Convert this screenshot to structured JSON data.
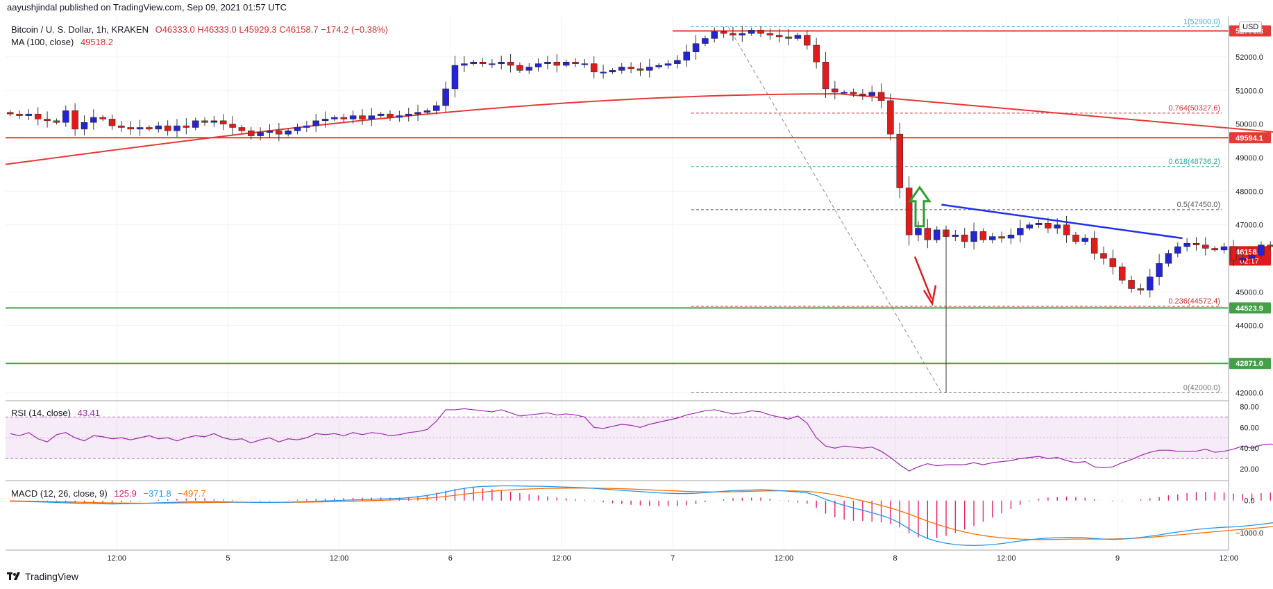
{
  "header": {
    "published": "aayushjindal published on TradingView.com, Sep 09, 2021 01:57 UTC",
    "symbol": "Bitcoin / U. S. Dollar, 1h, KRAKEN",
    "o": "O46333.0",
    "h": "H46333.0",
    "l": "L45929.3",
    "c": "C46158.7",
    "change": "−174.2 (−0.38%)",
    "ma_label": "MA (100, close)",
    "ma_value": "49518.2",
    "currency": "USD"
  },
  "indicators": {
    "rsi_label": "RSI (14, close)",
    "rsi_value": "43.41",
    "macd_label": "MACD (12, 26, close, 9)",
    "macd_hist": "125.9",
    "macd_line": "−371.8",
    "macd_signal": "−497.7"
  },
  "brand": "TradingView",
  "colors": {
    "up": "#2424d4",
    "down": "#e01b1b",
    "ma": "#e53935",
    "resistance": "#e53935",
    "support": "#43a047",
    "trendline": "#1f2ff0",
    "rsi": "#9c27b0",
    "macd": "#2196f3",
    "signal": "#ff6d00",
    "hist": "#e91e63",
    "arrow_up": "#2e9e2e",
    "arrow_down": "#e01b1b"
  },
  "chart_data": {
    "type": "candlestick",
    "ylim": [
      41800,
      53200
    ],
    "y_ticks": [
      "52000.0",
      "51000.0",
      "50000.0",
      "49000.0",
      "48000.0",
      "47000.0",
      "45000.0",
      "44000.0",
      "42000.0"
    ],
    "y_tick_values": [
      52000,
      51000,
      50000,
      49000,
      48000,
      47000,
      45000,
      44000,
      42000
    ],
    "x_ticks": [
      "12:00",
      "5",
      "12:00",
      "6",
      "12:00",
      "7",
      "12:00",
      "8",
      "12:00",
      "9",
      "12:00",
      "10",
      "12:00"
    ],
    "x_tick_hours": [
      12,
      24,
      36,
      48,
      60,
      72,
      84,
      96,
      108,
      120,
      132,
      144,
      156
    ],
    "candles": [
      [
        46333.0,
        46333.0,
        45929.3,
        46158.7
      ]
    ],
    "closes": [
      50300,
      50250,
      50300,
      50150,
      50100,
      50050,
      50400,
      49850,
      50050,
      50200,
      50150,
      49950,
      49900,
      49850,
      49900,
      49850,
      49950,
      49800,
      49950,
      49900,
      50100,
      50050,
      50100,
      50000,
      49900,
      49800,
      49650,
      49750,
      49800,
      49700,
      49800,
      49900,
      49950,
      50100,
      50150,
      50200,
      50150,
      50250,
      50150,
      50250,
      50300,
      50200,
      50250,
      50300,
      50350,
      50400,
      50550,
      51050,
      51750,
      51800,
      51850,
      51800,
      51800,
      51850,
      51750,
      51600,
      51700,
      51800,
      51850,
      51750,
      51850,
      51800,
      51800,
      51550,
      51550,
      51600,
      51700,
      51650,
      51600,
      51700,
      51750,
      51800,
      51900,
      52150,
      52400,
      52550,
      52750,
      52700,
      52650,
      52700,
      52800,
      52700,
      52650,
      52600,
      52550,
      52650,
      52350,
      51850,
      51050,
      50950,
      50950,
      50900,
      50850,
      50950,
      50700,
      49700,
      48100,
      46700,
      46900,
      46550,
      46850,
      46650,
      46700,
      46500,
      46800,
      46550,
      46650,
      46600,
      46700,
      46900,
      47000,
      47050,
      46900,
      47000,
      46700,
      46500,
      46600,
      46150,
      46000,
      45750,
      45350,
      45100,
      45050,
      45450,
      45850,
      46150,
      46350,
      46450,
      46400,
      46300,
      46250,
      46350,
      45950,
      46000,
      46100,
      46400,
      46350,
      46500,
      46450,
      46300,
      46150,
      46400,
      46450,
      46500,
      46350,
      46600,
      46400,
      46550,
      46333,
      46158.7
    ],
    "start_price": 50350,
    "ma_100": {
      "start": 48800,
      "peak": 50900,
      "end": 49518.2
    },
    "levels": [
      {
        "label": "52776.8",
        "price": 52776.8,
        "color": "resistance"
      },
      {
        "label": "49594.1",
        "price": 49594.1,
        "color": "resistance"
      },
      {
        "label": "46158.7",
        "price": 46158.7,
        "color": "down",
        "sub": "02:17"
      },
      {
        "label": "44523.9",
        "price": 44523.9,
        "color": "support"
      },
      {
        "label": "42871.0",
        "price": 42871.0,
        "color": "support"
      }
    ],
    "fib_levels": [
      {
        "label": "1(52900.0)",
        "price": 52900,
        "color": "#4aa7d8"
      },
      {
        "label": "0.764(50327.6)",
        "price": 50327.6,
        "color": "#d32f2f"
      },
      {
        "label": "0.618(48736.2)",
        "price": 48736.2,
        "color": "#26a69a"
      },
      {
        "label": "0.5(47450.0)",
        "price": 47450,
        "color": "#555555"
      },
      {
        "label": "0.236(44572.4)",
        "price": 44572.4,
        "color": "#d32f2f"
      },
      {
        "label": "0(42000.0)",
        "price": 42000,
        "color": "#777777"
      }
    ],
    "trendline": {
      "from": [
        101,
        47600
      ],
      "to": [
        125,
        46600
      ]
    },
    "rsi": {
      "ylim": [
        10,
        85
      ],
      "ticks": [
        "80.00",
        "60.00",
        "40.00",
        "20.00"
      ],
      "tick_values": [
        80,
        60,
        40,
        20
      ],
      "band": [
        30,
        70
      ],
      "values": [
        54,
        52,
        55,
        49,
        46,
        53,
        55,
        50,
        47,
        52,
        51,
        49,
        50,
        48,
        50,
        52,
        49,
        50,
        47,
        50,
        52,
        51,
        54,
        50,
        48,
        49,
        45,
        48,
        50,
        46,
        49,
        48,
        50,
        54,
        53,
        54,
        52,
        55,
        53,
        55,
        54,
        52,
        53,
        55,
        56,
        58,
        66,
        77,
        77,
        78,
        77,
        76,
        75,
        77,
        74,
        71,
        72,
        73,
        74,
        72,
        73,
        72,
        70,
        60,
        59,
        61,
        63,
        62,
        60,
        63,
        65,
        67,
        69,
        72,
        74,
        76,
        77,
        75,
        73,
        74,
        76,
        75,
        72,
        70,
        68,
        71,
        64,
        50,
        42,
        40,
        42,
        41,
        40,
        41,
        37,
        31,
        24,
        18,
        22,
        25,
        23,
        24,
        24,
        24,
        26,
        24,
        26,
        27,
        28,
        30,
        31,
        32,
        30,
        31,
        28,
        26,
        27,
        22,
        21,
        22,
        26,
        29,
        33,
        36,
        38,
        38,
        37,
        37,
        37,
        39,
        36,
        37,
        39,
        42,
        40,
        43,
        44,
        42,
        40,
        45,
        43,
        45,
        44,
        46,
        44,
        47,
        45,
        47,
        44.5,
        43.41
      ]
    },
    "macd": {
      "ylim": [
        -1500,
        600
      ],
      "ticks": [
        "0.0",
        "−1000.0"
      ],
      "tick_values": [
        0,
        -1000
      ],
      "macd": [
        -20,
        -25,
        -30,
        -40,
        -50,
        -60,
        -70,
        -80,
        -90,
        -95,
        -100,
        -105,
        -100,
        -95,
        -90,
        -80,
        -70,
        -60,
        -50,
        -40,
        -30,
        -30,
        -35,
        -40,
        -45,
        -50,
        -55,
        -60,
        -60,
        -55,
        -50,
        -40,
        -30,
        -20,
        -10,
        0,
        10,
        20,
        30,
        40,
        50,
        60,
        70,
        90,
        120,
        160,
        210,
        270,
        330,
        380,
        420,
        440,
        450,
        460,
        460,
        455,
        450,
        445,
        440,
        430,
        420,
        410,
        400,
        380,
        360,
        340,
        320,
        300,
        280,
        260,
        240,
        230,
        220,
        220,
        230,
        250,
        270,
        290,
        310,
        320,
        330,
        340,
        330,
        310,
        290,
        270,
        240,
        160,
        40,
        -60,
        -150,
        -230,
        -300,
        -380,
        -460,
        -560,
        -700,
        -880,
        -1050,
        -1180,
        -1270,
        -1330,
        -1370,
        -1390,
        -1400,
        -1390,
        -1370,
        -1340,
        -1300,
        -1260,
        -1220,
        -1190,
        -1170,
        -1160,
        -1150,
        -1150,
        -1160,
        -1180,
        -1200,
        -1210,
        -1200,
        -1180,
        -1150,
        -1110,
        -1070,
        -1020,
        -980,
        -940,
        -900,
        -870,
        -850,
        -830,
        -820,
        -800,
        -770,
        -740,
        -700,
        -670,
        -640,
        -610,
        -580,
        -550,
        -520,
        -490,
        -460,
        -430,
        -410,
        -390,
        -380,
        -371.8
      ],
      "signal": [
        -10,
        -14,
        -18,
        -22,
        -28,
        -34,
        -40,
        -48,
        -55,
        -62,
        -68,
        -74,
        -78,
        -80,
        -82,
        -82,
        -80,
        -78,
        -74,
        -70,
        -66,
        -62,
        -58,
        -56,
        -54,
        -53,
        -52,
        -53,
        -54,
        -54,
        -54,
        -52,
        -48,
        -44,
        -38,
        -32,
        -25,
        -18,
        -10,
        -2,
        8,
        18,
        28,
        40,
        56,
        76,
        100,
        130,
        165,
        200,
        235,
        265,
        290,
        315,
        335,
        350,
        362,
        372,
        380,
        385,
        388,
        390,
        390,
        388,
        384,
        378,
        370,
        360,
        348,
        336,
        322,
        310,
        298,
        286,
        278,
        272,
        270,
        272,
        276,
        282,
        290,
        298,
        304,
        306,
        304,
        298,
        286,
        262,
        226,
        178,
        120,
        56,
        -10,
        -80,
        -150,
        -230,
        -320,
        -420,
        -530,
        -640,
        -740,
        -830,
        -910,
        -980,
        -1040,
        -1090,
        -1130,
        -1160,
        -1180,
        -1200,
        -1210,
        -1215,
        -1215,
        -1210,
        -1205,
        -1200,
        -1200,
        -1200,
        -1200,
        -1198,
        -1190,
        -1180,
        -1165,
        -1145,
        -1120,
        -1095,
        -1070,
        -1045,
        -1020,
        -995,
        -970,
        -945,
        -920,
        -895,
        -870,
        -845,
        -815,
        -785,
        -755,
        -725,
        -695,
        -665,
        -635,
        -610,
        -585,
        -560,
        -540,
        -520,
        -505,
        -497.7
      ]
    }
  }
}
